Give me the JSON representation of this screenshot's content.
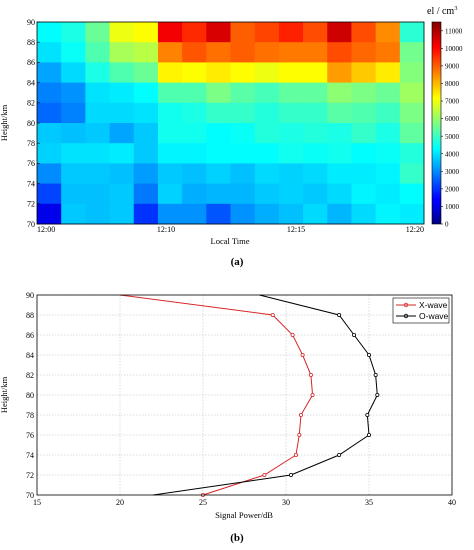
{
  "figure": {
    "caption_a": "(a)",
    "caption_b": "(b)"
  },
  "chart_data": [
    {
      "type": "heatmap",
      "xlabel": "Local Time",
      "ylabel": "Height/km",
      "x_tick_labels": [
        "12:00",
        "12:10",
        "12:15",
        "12:20"
      ],
      "y_ticks": [
        70,
        72,
        74,
        76,
        78,
        80,
        82,
        84,
        86,
        88,
        90
      ],
      "ylim": [
        70,
        90
      ],
      "time_columns": 16,
      "height_rows": [
        89,
        87,
        85,
        83,
        81,
        79,
        77,
        75,
        73,
        71
      ],
      "values": [
        [
          4300,
          4600,
          5500,
          7000,
          7200,
          10200,
          9600,
          10500,
          9000,
          9300,
          9700,
          9200,
          10600,
          9200,
          8500,
          4800
        ],
        [
          4000,
          4400,
          5200,
          6200,
          6400,
          8600,
          9100,
          8800,
          9000,
          8800,
          8700,
          8700,
          9200,
          8900,
          8700,
          5600
        ],
        [
          3300,
          3900,
          4600,
          5200,
          5500,
          7300,
          7200,
          7400,
          7200,
          7000,
          7200,
          7200,
          8300,
          7800,
          7400,
          5800
        ],
        [
          2900,
          3100,
          4000,
          4100,
          4300,
          5200,
          5200,
          5700,
          5300,
          5100,
          5400,
          5400,
          5900,
          5700,
          5500,
          6100
        ],
        [
          2600,
          2900,
          3900,
          3900,
          4000,
          4500,
          4600,
          4900,
          4900,
          4700,
          4900,
          4900,
          5300,
          5200,
          5000,
          5700
        ],
        [
          3700,
          3600,
          3700,
          3300,
          3700,
          4500,
          4500,
          4300,
          4400,
          4700,
          4600,
          4700,
          4600,
          4900,
          4600,
          5400
        ],
        [
          3800,
          4000,
          4000,
          4100,
          3700,
          4200,
          4200,
          4300,
          4300,
          4300,
          4500,
          4400,
          4500,
          4300,
          4400,
          4700
        ],
        [
          3000,
          3700,
          3700,
          3600,
          3200,
          3700,
          3600,
          3800,
          3600,
          3900,
          3800,
          3900,
          4100,
          4100,
          4200,
          4900
        ],
        [
          2200,
          3600,
          3600,
          3700,
          2800,
          3800,
          3400,
          3500,
          3500,
          3700,
          3800,
          3700,
          3900,
          4200,
          4100,
          4300
        ],
        [
          1200,
          3700,
          3600,
          3700,
          2000,
          3100,
          3100,
          2400,
          3100,
          3400,
          3600,
          3900,
          3500,
          3900,
          4200,
          4100
        ]
      ],
      "colorbar": {
        "label": "el / cm",
        "label_sup": "3",
        "ticks": [
          0,
          1000,
          2000,
          3000,
          4000,
          5000,
          6000,
          7000,
          8000,
          9000,
          10000,
          11000
        ],
        "range": [
          0,
          11500
        ]
      }
    },
    {
      "type": "line",
      "xlabel": "Signal Power/dB",
      "ylabel": "Height/km",
      "xlim": [
        15,
        40
      ],
      "ylim": [
        70,
        90
      ],
      "x_ticks": [
        15,
        20,
        25,
        30,
        35,
        40
      ],
      "y_ticks": [
        70,
        72,
        74,
        76,
        78,
        80,
        82,
        84,
        86,
        88,
        90
      ],
      "grid": true,
      "legend": "top-right",
      "series": [
        {
          "name": "X-wave",
          "color": "#d62728",
          "points": [
            [
              25.0,
              70
            ],
            [
              28.7,
              72
            ],
            [
              30.6,
              74
            ],
            [
              30.8,
              76
            ],
            [
              30.9,
              78
            ],
            [
              31.6,
              80
            ],
            [
              31.5,
              82
            ],
            [
              31.0,
              84
            ],
            [
              30.4,
              86
            ],
            [
              29.2,
              88
            ],
            [
              20.0,
              90
            ]
          ],
          "marked_heights": [
            70,
            72,
            74,
            76,
            78,
            80,
            82,
            84,
            86,
            88
          ]
        },
        {
          "name": "O-wave",
          "color": "#000000",
          "points": [
            [
              22.0,
              70
            ],
            [
              30.3,
              72
            ],
            [
              33.2,
              74
            ],
            [
              35.0,
              76
            ],
            [
              34.9,
              78
            ],
            [
              35.5,
              80
            ],
            [
              35.4,
              82
            ],
            [
              35.0,
              84
            ],
            [
              34.1,
              86
            ],
            [
              33.2,
              88
            ],
            [
              28.4,
              90
            ]
          ],
          "marked_heights": [
            72,
            74,
            76,
            78,
            80,
            82,
            84,
            86,
            88
          ]
        }
      ]
    }
  ]
}
